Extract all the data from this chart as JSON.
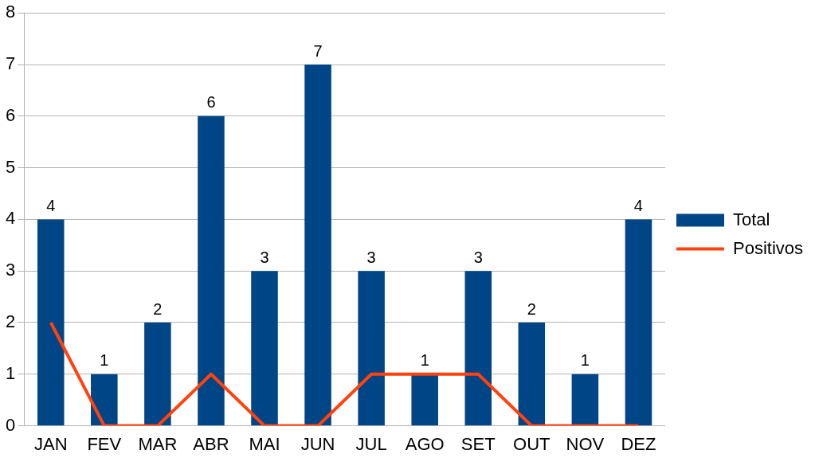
{
  "chart_data": {
    "type": "bar",
    "categories": [
      "JAN",
      "FEV",
      "MAR",
      "ABR",
      "MAI",
      "JUN",
      "JUL",
      "AGO",
      "SET",
      "OUT",
      "NOV",
      "DEZ"
    ],
    "series": [
      {
        "name": "Total",
        "color": "#004586",
        "values": [
          4,
          1,
          2,
          6,
          3,
          7,
          3,
          1,
          3,
          2,
          1,
          4
        ],
        "value_labels": [
          "4",
          "1",
          "2",
          "6",
          "3",
          "7",
          "3",
          "1",
          "3",
          "2",
          "1",
          "4"
        ]
      },
      {
        "name": "Positivos",
        "type": "line",
        "color": "#ff420e",
        "values": [
          2,
          0,
          0,
          1,
          0,
          0,
          1,
          1,
          1,
          0,
          0,
          0
        ]
      }
    ],
    "ylim": [
      0,
      8
    ],
    "yticks": [
      0,
      1,
      2,
      3,
      4,
      5,
      6,
      7,
      8
    ],
    "grid": "y",
    "legend": "right",
    "marker": "none",
    "line_style": "solid"
  }
}
